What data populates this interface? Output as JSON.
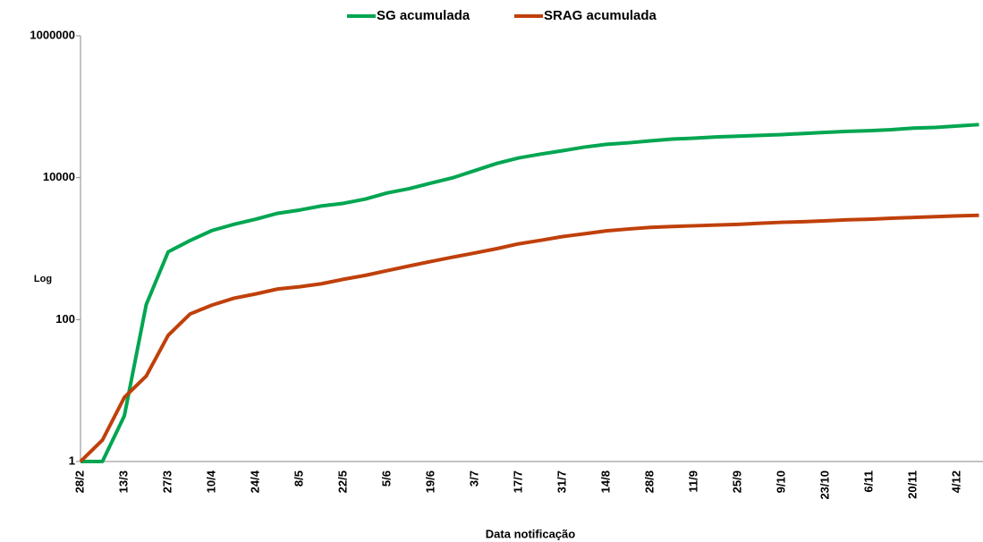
{
  "chart_data": {
    "type": "line",
    "x_label": "Data notificação",
    "y_label": "Log",
    "yscale": "log",
    "ylim": [
      1,
      1000000
    ],
    "yticks": [
      1,
      100,
      10000,
      1000000
    ],
    "legend": "top",
    "categories": [
      "28/2",
      null,
      "13/3",
      null,
      "27/3",
      null,
      "10/4",
      null,
      "24/4",
      null,
      "8/5",
      null,
      "22/5",
      null,
      "5/6",
      null,
      "19/6",
      null,
      "3/7",
      null,
      "17/7",
      null,
      "31/7",
      null,
      "14/8",
      null,
      "28/8",
      null,
      "11/9",
      null,
      "25/9",
      null,
      "9/10",
      null,
      "23/10",
      null,
      "6/11",
      null,
      "20/11",
      null,
      "4/12",
      null
    ],
    "series": [
      {
        "name": "SG acumulada",
        "color": "#00a651",
        "values": [
          1,
          1,
          4.4,
          163,
          900,
          1300,
          1800,
          2200,
          2600,
          3150,
          3500,
          4000,
          4350,
          5000,
          6100,
          7000,
          8400,
          10000,
          12600,
          15900,
          19000,
          21500,
          24000,
          27000,
          29500,
          31000,
          33000,
          35000,
          36000,
          37500,
          38500,
          39500,
          40500,
          42000,
          43500,
          45000,
          46000,
          47500,
          50000,
          51000,
          53500,
          56000
        ]
      },
      {
        "name": "SRAG acumulada",
        "color": "#c0400a",
        "values": [
          1,
          2,
          8,
          16,
          60,
          120,
          160,
          200,
          230,
          270,
          290,
          320,
          370,
          420,
          490,
          570,
          660,
          760,
          870,
          1000,
          1170,
          1310,
          1480,
          1620,
          1780,
          1890,
          1990,
          2050,
          2100,
          2150,
          2200,
          2280,
          2350,
          2400,
          2470,
          2550,
          2600,
          2680,
          2750,
          2820,
          2900,
          2950
        ]
      }
    ]
  }
}
